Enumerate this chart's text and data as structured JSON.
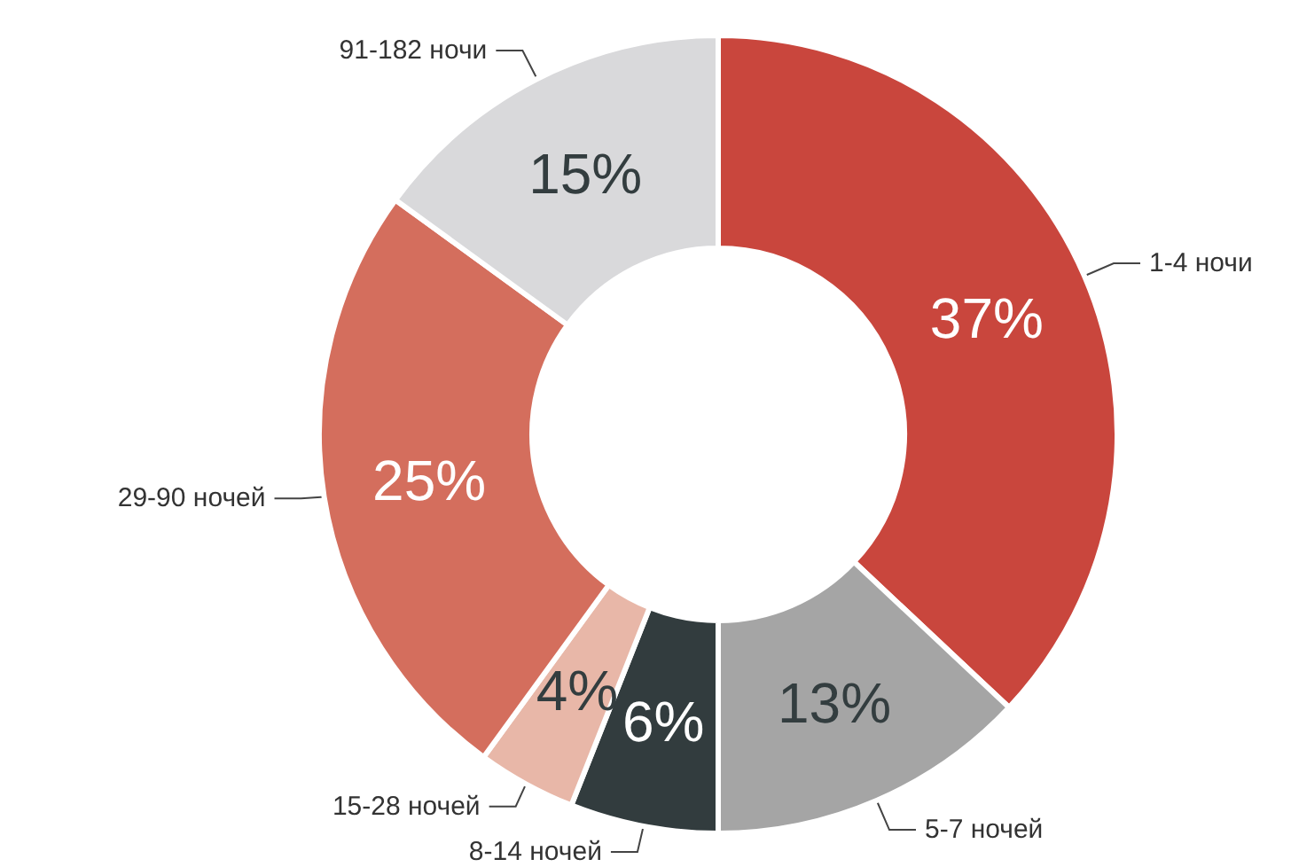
{
  "chart_data": {
    "type": "donut",
    "categories": [
      "1-4 ночи",
      "5-7 ночей",
      "8-14 ночей",
      "15-28 ночей",
      "29-90 ночей",
      "91-182 ночи"
    ],
    "values": [
      37,
      13,
      6,
      4,
      25,
      15
    ],
    "value_labels": [
      "37%",
      "13%",
      "6%",
      "4%",
      "25%",
      "15%"
    ],
    "colors": [
      "#c9463d",
      "#a5a5a5",
      "#323c3e",
      "#e8b7a8",
      "#d46e5d",
      "#d9d9db"
    ],
    "legend": false
  }
}
